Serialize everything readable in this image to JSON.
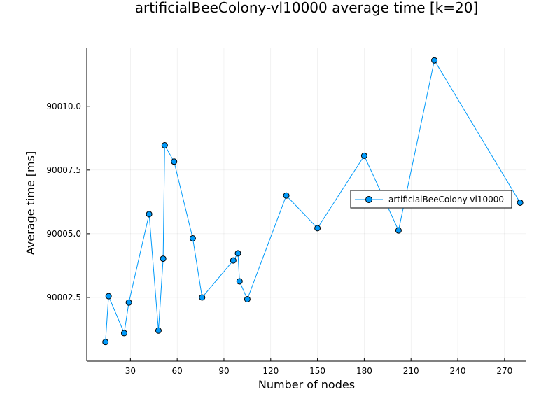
{
  "chart_data": {
    "type": "line",
    "title": "artificialBeeColony-vl10000 average time [k=20]",
    "xlabel": "Number of nodes",
    "ylabel": "Average time [ms]",
    "xlim": [
      2,
      284
    ],
    "ylim": [
      90000.0,
      90012.3
    ],
    "xticks": [
      30,
      60,
      90,
      120,
      150,
      180,
      210,
      240,
      270
    ],
    "yticks": [
      90002.5,
      90005.0,
      90007.5,
      90010.0
    ],
    "ytick_labels": [
      "90002.5",
      "90005.0",
      "90007.5",
      "90010.0"
    ],
    "grid": true,
    "legend_position": "right",
    "series": [
      {
        "name": "artificialBeeColony-vl10000",
        "color": "#009AFA",
        "points": [
          {
            "x": 14,
            "y": 90000.75
          },
          {
            "x": 16,
            "y": 90002.55
          },
          {
            "x": 26,
            "y": 90001.1
          },
          {
            "x": 29,
            "y": 90002.3
          },
          {
            "x": 42,
            "y": 90005.77
          },
          {
            "x": 48,
            "y": 90001.2
          },
          {
            "x": 51,
            "y": 90004.02
          },
          {
            "x": 52,
            "y": 90008.47
          },
          {
            "x": 58,
            "y": 90007.83
          },
          {
            "x": 70,
            "y": 90004.82
          },
          {
            "x": 76,
            "y": 90002.5
          },
          {
            "x": 96,
            "y": 90003.95
          },
          {
            "x": 99,
            "y": 90004.23
          },
          {
            "x": 100,
            "y": 90003.13
          },
          {
            "x": 105,
            "y": 90002.43
          },
          {
            "x": 130,
            "y": 90006.5
          },
          {
            "x": 150,
            "y": 90005.22
          },
          {
            "x": 180,
            "y": 90008.06
          },
          {
            "x": 202,
            "y": 90005.13
          },
          {
            "x": 225,
            "y": 90011.8
          },
          {
            "x": 280,
            "y": 90006.22
          }
        ]
      }
    ]
  }
}
